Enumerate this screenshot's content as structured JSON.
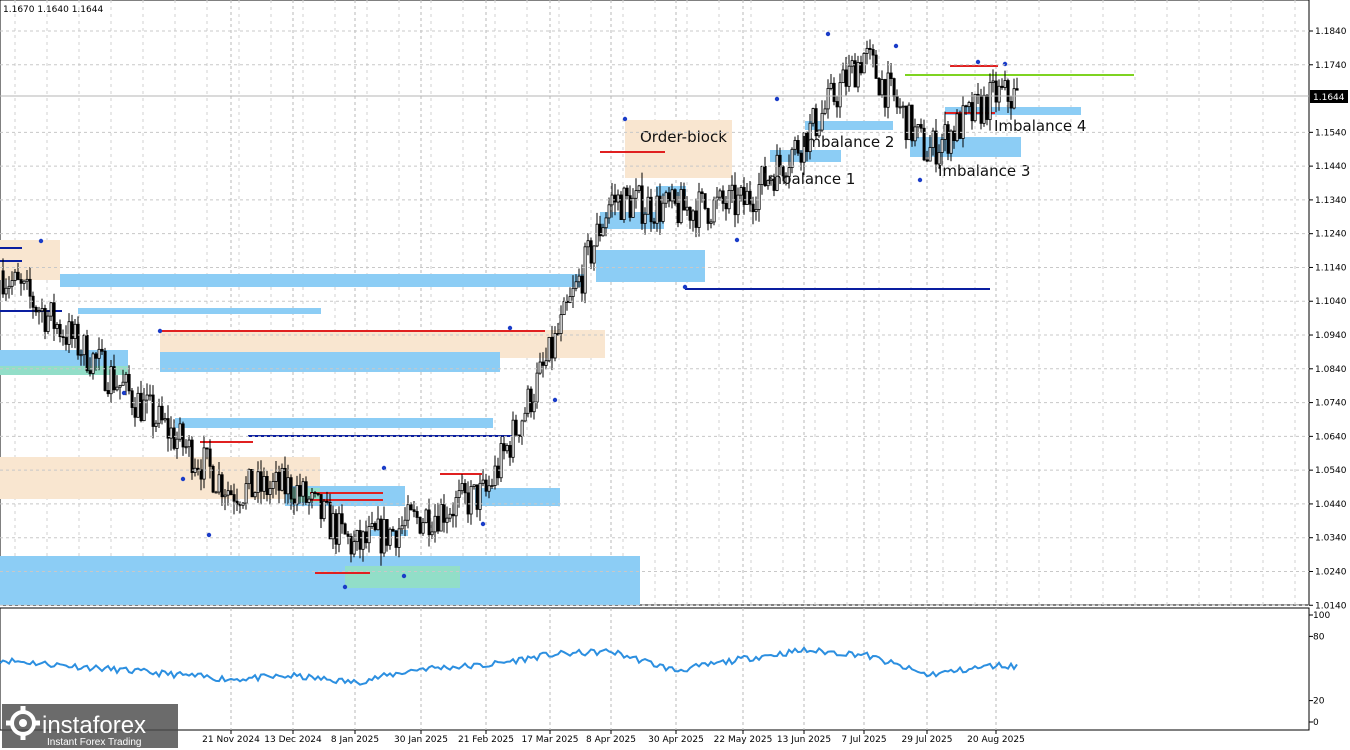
{
  "header": {
    "ohlc": "1.1670 1.1640 1.1644"
  },
  "price_axis": [
    "1.1840",
    "1.1740",
    "1.1540",
    "1.1440",
    "1.1340",
    "1.1240",
    "1.1140",
    "1.1040",
    "1.0940",
    "1.0840",
    "1.0740",
    "1.0640",
    "1.0540",
    "1.0440",
    "1.0340",
    "1.0240",
    "1.0140"
  ],
  "current_price": "1.1644",
  "indicator_axis": [
    "100",
    "80",
    "20",
    "0"
  ],
  "time_axis": [
    "21 Nov 2024",
    "13 Dec 2024",
    "8 Jan 2025",
    "30 Jan 2025",
    "21 Feb 2025",
    "17 Mar 2025",
    "8 Apr 2025",
    "30 Apr 2025",
    "22 May 2025",
    "13 Jun 2025",
    "7 Jul 2025",
    "29 Jul 2025",
    "20 Aug 2025"
  ],
  "annotations": {
    "order_block": "Order-block",
    "imbalance_1": "Imbalance 1",
    "imbalance_2": "Imbalance 2",
    "imbalance_3": "Imbalance 3",
    "imbalance_4": "Imbalance 4"
  },
  "watermark": {
    "brand": "instaforex",
    "tagline": "Instant Forex Trading"
  },
  "colors": {
    "imbalance_zone": "#8ccdf5",
    "order_block_zone": "#f9e6d0",
    "green_zone": "#92dec8",
    "level_red": "#e02020",
    "level_blue": "#0a1ea0",
    "level_green": "#7ed321",
    "indicator_line": "#2c8fe0",
    "candle": "#000000",
    "swing_marker": "#1a3cc8"
  },
  "chart_data": {
    "type": "candlestick",
    "symbol_quote": {
      "open": 1.167,
      "close": 1.164,
      "last": 1.1644
    },
    "price_range": [
      1.014,
      1.19
    ],
    "indicator_range": [
      0,
      100
    ],
    "anchors": [
      {
        "date": "start",
        "price": 1.113
      },
      {
        "date": "21 Nov 2024",
        "price": 1.048
      },
      {
        "date": "13 Dec 2024",
        "price": 1.049
      },
      {
        "date": "8 Jan 2025",
        "price": 1.031
      },
      {
        "date": "30 Jan 2025",
        "price": 1.04
      },
      {
        "date": "21 Feb 2025",
        "price": 1.047
      },
      {
        "date": "17 Mar 2025",
        "price": 1.088
      },
      {
        "date": "8 Apr 2025",
        "price": 1.134
      },
      {
        "date": "30 Apr 2025",
        "price": 1.131
      },
      {
        "date": "22 May 2025",
        "price": 1.133
      },
      {
        "date": "13 Jun 2025",
        "price": 1.152
      },
      {
        "date": "7 Jul 2025",
        "price": 1.177
      },
      {
        "date": "29 Jul 2025",
        "price": 1.148
      },
      {
        "date": "20 Aug 2025",
        "price": 1.165
      },
      {
        "date": "end",
        "price": 1.1644
      }
    ],
    "indicator_anchors": [
      {
        "date": "start",
        "value": 58
      },
      {
        "date": "21 Nov 2024",
        "value": 40
      },
      {
        "date": "13 Dec 2024",
        "value": 43
      },
      {
        "date": "8 Jan 2025",
        "value": 37
      },
      {
        "date": "30 Jan 2025",
        "value": 50
      },
      {
        "date": "21 Feb 2025",
        "value": 53
      },
      {
        "date": "17 Mar 2025",
        "value": 63
      },
      {
        "date": "8 Apr 2025",
        "value": 66
      },
      {
        "date": "30 Apr 2025",
        "value": 48
      },
      {
        "date": "22 May 2025",
        "value": 59
      },
      {
        "date": "13 Jun 2025",
        "value": 67
      },
      {
        "date": "7 Jul 2025",
        "value": 63
      },
      {
        "date": "29 Jul 2025",
        "value": 44
      },
      {
        "date": "20 Aug 2025",
        "value": 53
      },
      {
        "date": "end",
        "value": 52
      }
    ],
    "levels": [
      {
        "color": "level_green",
        "price": 1.1705
      },
      {
        "color": "level_blue",
        "price": 1.107
      },
      {
        "color": "level_blue",
        "price": 1.0628
      },
      {
        "color": "level_red",
        "price": 1.0945
      },
      {
        "color": "level_red",
        "price": 1.1475
      }
    ]
  }
}
